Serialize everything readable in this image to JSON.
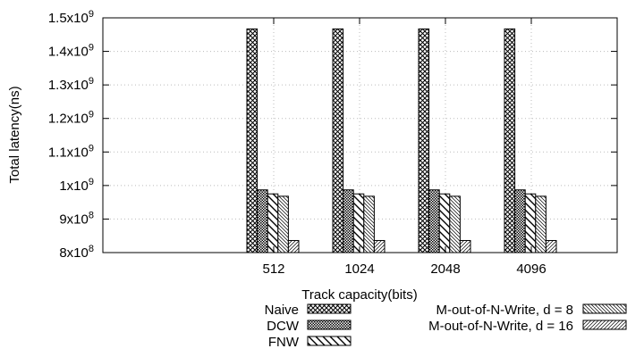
{
  "chart_data": {
    "type": "bar",
    "title": "",
    "xlabel": "Track capacity(bits)",
    "ylabel": "Total latency(ns)",
    "categories": [
      "512",
      "1024",
      "2048",
      "4096"
    ],
    "ylim": [
      800000000,
      1500000000
    ],
    "y_ticks": [
      {
        "value": 800000000,
        "mantissa": "8x10",
        "exp": "8"
      },
      {
        "value": 900000000,
        "mantissa": "9x10",
        "exp": "8"
      },
      {
        "value": 1000000000,
        "mantissa": "1x10",
        "exp": "9"
      },
      {
        "value": 1100000000,
        "mantissa": "1.1x10",
        "exp": "9"
      },
      {
        "value": 1200000000,
        "mantissa": "1.2x10",
        "exp": "9"
      },
      {
        "value": 1300000000,
        "mantissa": "1.3x10",
        "exp": "9"
      },
      {
        "value": 1400000000,
        "mantissa": "1.4x10",
        "exp": "9"
      },
      {
        "value": 1500000000,
        "mantissa": "1.5x10",
        "exp": "9"
      }
    ],
    "grid": true,
    "legend_position": "bottom",
    "series": [
      {
        "name": "Naive",
        "pattern": "crosshatch-dense",
        "values": [
          1467000000,
          1467000000,
          1467000000,
          1467000000
        ]
      },
      {
        "name": "DCW",
        "pattern": "checker-fine",
        "values": [
          987000000,
          987000000,
          987000000,
          987000000
        ]
      },
      {
        "name": "FNW",
        "pattern": "backslash-wide",
        "values": [
          975000000,
          975000000,
          975000000,
          975000000
        ]
      },
      {
        "name": "M-out-of-N-Write, d = 8",
        "pattern": "backslash-fine",
        "values": [
          968000000,
          968000000,
          968000000,
          968000000
        ]
      },
      {
        "name": "M-out-of-N-Write, d = 16",
        "pattern": "slash-fine",
        "values": [
          836000000,
          836000000,
          836000000,
          836000000
        ]
      }
    ]
  }
}
